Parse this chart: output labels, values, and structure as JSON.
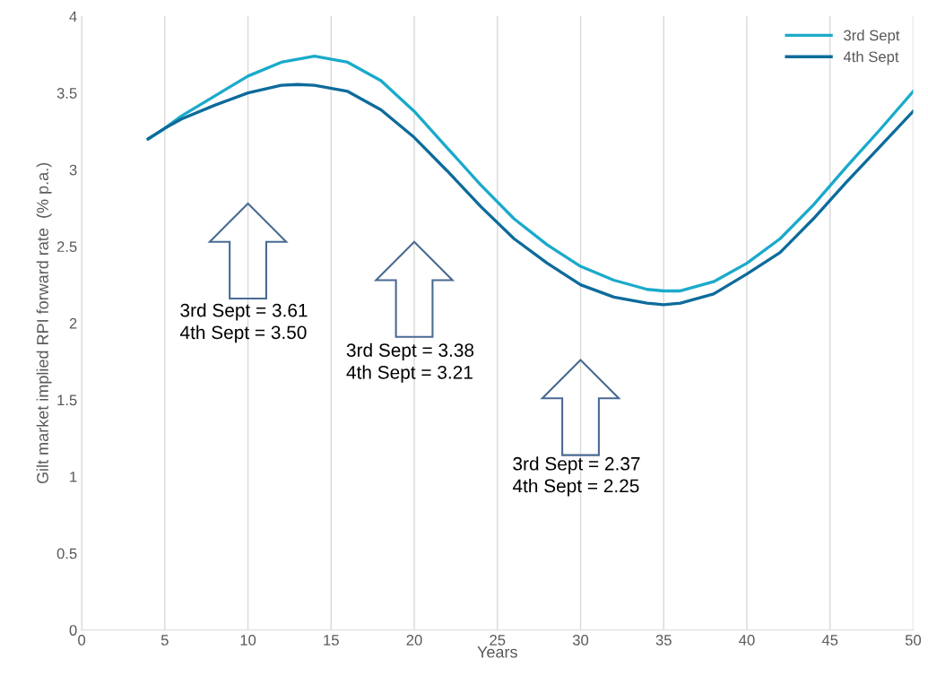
{
  "chart_data": {
    "type": "line",
    "xlabel": "Years",
    "ylabel": "Gilt market implied RPI forward rate  (% p.a.)",
    "xlim": [
      0,
      50
    ],
    "ylim": [
      0,
      4
    ],
    "xticks": [
      0,
      5,
      10,
      15,
      20,
      25,
      30,
      35,
      40,
      45,
      50
    ],
    "yticks": [
      0,
      0.5,
      1,
      1.5,
      2,
      2.5,
      3,
      3.5,
      4
    ],
    "grid": "x",
    "legend": "top right",
    "marker": "none",
    "line_style": "solid",
    "series": [
      {
        "name": "3rd Sept",
        "color": "#1aaacb",
        "x": [
          4,
          5,
          6,
          8,
          10,
          12,
          14,
          16,
          18,
          20,
          22,
          24,
          26,
          28,
          30,
          32,
          34,
          35,
          36,
          38,
          40,
          42,
          44,
          46,
          48,
          50
        ],
        "values": [
          3.2,
          3.27,
          3.35,
          3.48,
          3.61,
          3.7,
          3.74,
          3.7,
          3.58,
          3.38,
          3.14,
          2.9,
          2.68,
          2.51,
          2.37,
          2.28,
          2.22,
          2.21,
          2.21,
          2.27,
          2.39,
          2.55,
          2.77,
          3.02,
          3.26,
          3.51
        ]
      },
      {
        "name": "4th Sept",
        "color": "#0d6b9b",
        "x": [
          4,
          5,
          6,
          8,
          10,
          12,
          13,
          14,
          16,
          18,
          20,
          22,
          24,
          26,
          28,
          30,
          32,
          34,
          35,
          36,
          38,
          40,
          42,
          44,
          46,
          48,
          50
        ],
        "values": [
          3.2,
          3.27,
          3.33,
          3.42,
          3.5,
          3.55,
          3.555,
          3.55,
          3.51,
          3.39,
          3.21,
          2.99,
          2.76,
          2.55,
          2.39,
          2.25,
          2.17,
          2.13,
          2.12,
          2.13,
          2.19,
          2.32,
          2.46,
          2.68,
          2.92,
          3.15,
          3.38
        ]
      }
    ],
    "annotations": [
      "3rd Sept = 3.61\n4th Sept = 3.50",
      "3rd Sept = 3.38\n4th Sept = 3.21",
      "3rd Sept = 2.37\n4th Sept = 2.25"
    ]
  }
}
